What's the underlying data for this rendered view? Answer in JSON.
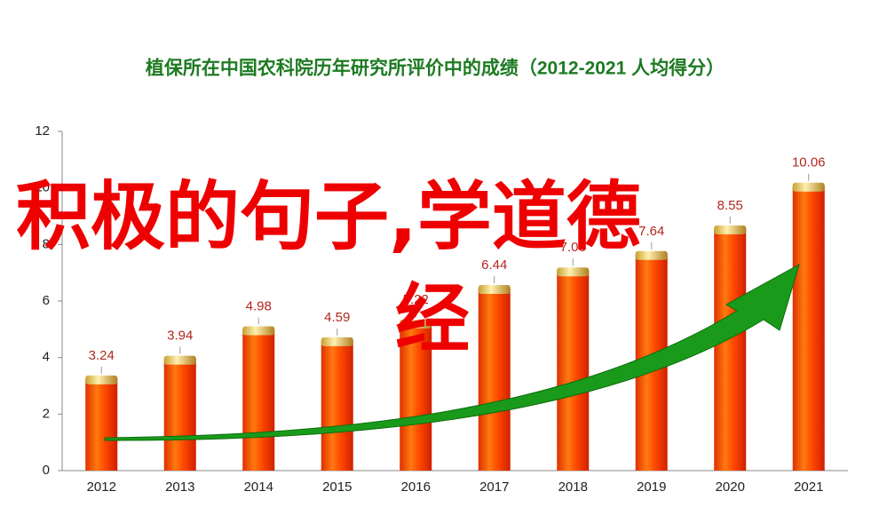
{
  "chart_data": {
    "type": "bar",
    "title": "植保所在中国农科院历年研究所评价中的成绩（2012-2021  人均得分）",
    "categories": [
      "2012",
      "2013",
      "2014",
      "2015",
      "2016",
      "2017",
      "2018",
      "2019",
      "2020",
      "2021"
    ],
    "values": [
      3.24,
      3.94,
      4.98,
      4.59,
      5.22,
      6.44,
      7.06,
      7.64,
      8.55,
      10.06
    ],
    "color": "#ff3a00",
    "ylim": [
      0,
      12
    ],
    "yticks": [
      0,
      2,
      4,
      6,
      8,
      10,
      12
    ],
    "grid": false,
    "overlay": [
      "积极的句子,学道德",
      "经"
    ]
  }
}
